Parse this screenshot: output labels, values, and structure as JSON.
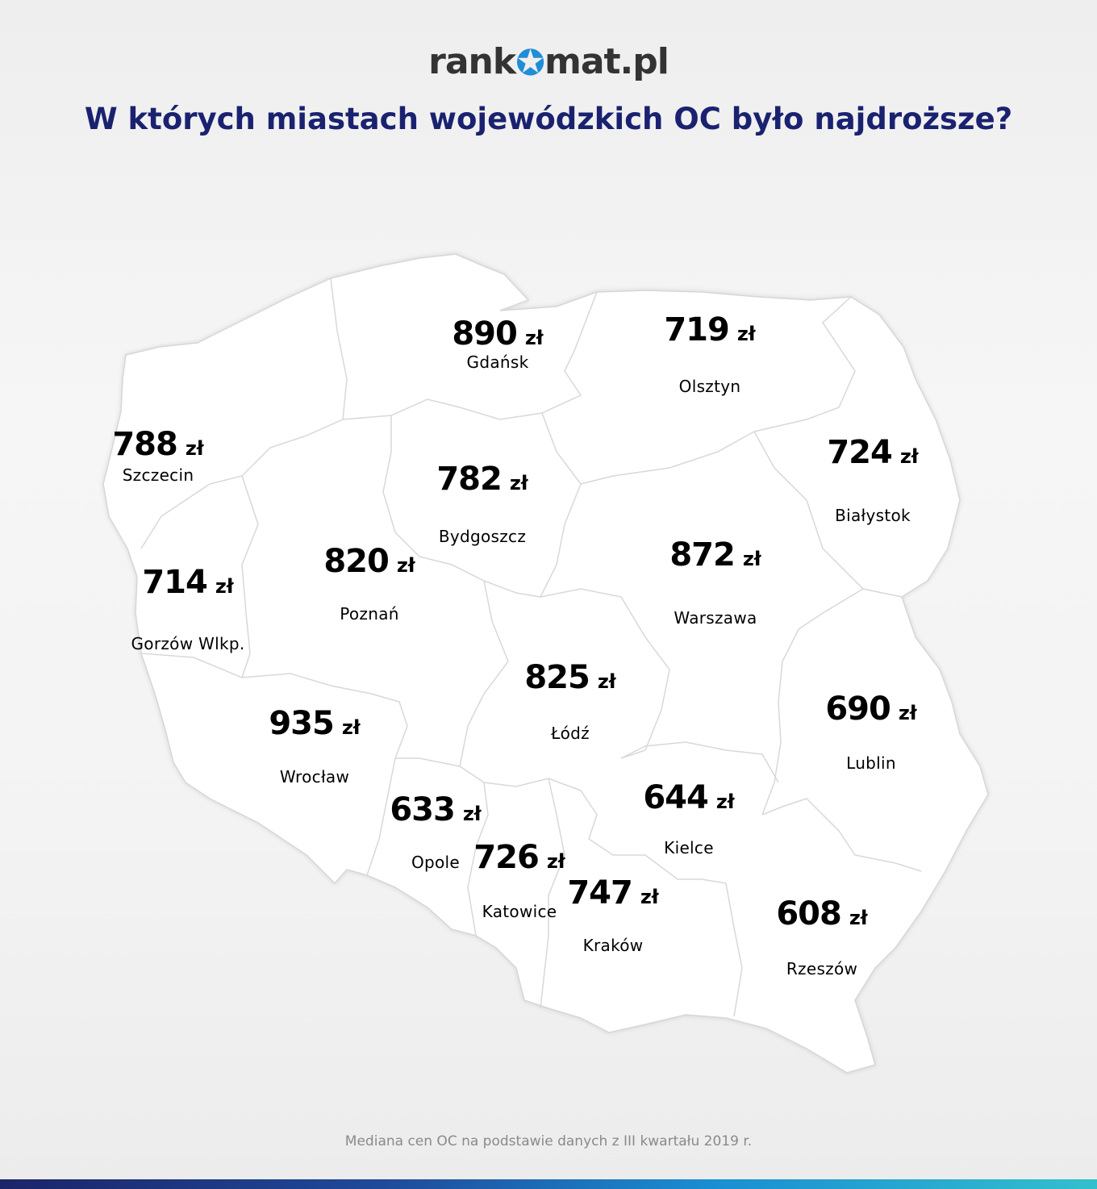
{
  "logo": {
    "text_before": "rank",
    "text_after": "mat.pl"
  },
  "title": "W których miastach wojewódzkich OC było najdroższe?",
  "currency": "zł",
  "colors": {
    "high": "#ff4545",
    "mid": "#2d3a6b",
    "low": "#70c060",
    "title": "#1a2270"
  },
  "cities": [
    {
      "name": "Gdańsk",
      "price": "890",
      "level": "high"
    },
    {
      "name": "Olsztyn",
      "price": "719",
      "level": "mid"
    },
    {
      "name": "Szczecin",
      "price": "788",
      "level": "mid"
    },
    {
      "name": "Bydgoszcz",
      "price": "782",
      "level": "mid"
    },
    {
      "name": "Białystok",
      "price": "724",
      "level": "mid"
    },
    {
      "name": "Poznań",
      "price": "820",
      "level": "mid"
    },
    {
      "name": "Gorzów Wlkp.",
      "price": "714",
      "level": "mid"
    },
    {
      "name": "Warszawa",
      "price": "872",
      "level": "high"
    },
    {
      "name": "Łódź",
      "price": "825",
      "level": "mid"
    },
    {
      "name": "Lublin",
      "price": "690",
      "level": "mid"
    },
    {
      "name": "Wrocław",
      "price": "935",
      "level": "high"
    },
    {
      "name": "Opole",
      "price": "633",
      "level": "low"
    },
    {
      "name": "Kielce",
      "price": "644",
      "level": "low"
    },
    {
      "name": "Katowice",
      "price": "726",
      "level": "mid"
    },
    {
      "name": "Kraków",
      "price": "747",
      "level": "mid"
    },
    {
      "name": "Rzeszów",
      "price": "608",
      "level": "low"
    }
  ],
  "footnote": "Mediana cen OC na podstawie danych z III kwartału 2019 r."
}
